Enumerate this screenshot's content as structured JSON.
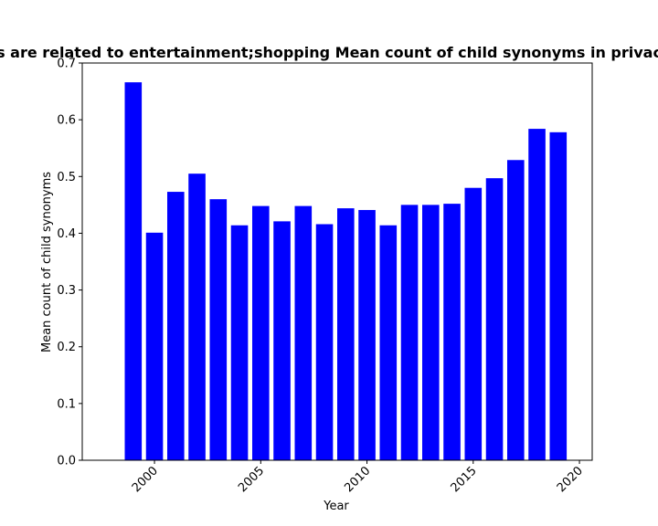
{
  "chart_data": {
    "type": "bar",
    "title": "s are related to entertainment;shopping Mean count of child synonyms in privac",
    "xlabel": "Year",
    "ylabel": "Mean count of child synonyms",
    "x": [
      1999,
      2000,
      2001,
      2002,
      2003,
      2004,
      2005,
      2006,
      2007,
      2008,
      2009,
      2010,
      2011,
      2012,
      2013,
      2014,
      2015,
      2016,
      2017,
      2018,
      2019
    ],
    "values": [
      0.666,
      0.401,
      0.473,
      0.505,
      0.46,
      0.414,
      0.448,
      0.421,
      0.448,
      0.416,
      0.444,
      0.441,
      0.414,
      0.45,
      0.45,
      0.452,
      0.48,
      0.497,
      0.529,
      0.584,
      0.578
    ],
    "xlim": [
      1996.6,
      2020.6
    ],
    "ylim": [
      0,
      0.7
    ],
    "xticks": [
      "2000",
      "2005",
      "2010",
      "2015",
      "2020"
    ],
    "yticks": [
      "0.0",
      "0.1",
      "0.2",
      "0.3",
      "0.4",
      "0.5",
      "0.6",
      "0.7"
    ],
    "bar_color": "#0000ff",
    "grid": false,
    "legend": false
  }
}
